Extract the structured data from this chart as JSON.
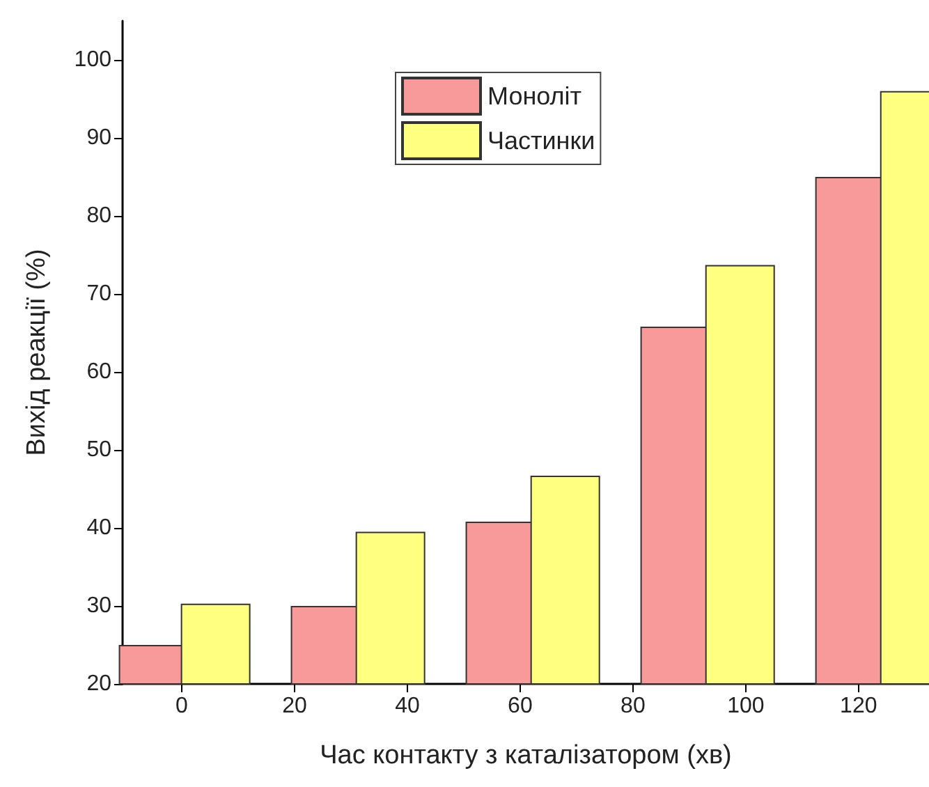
{
  "chart_data": {
    "type": "bar",
    "xlabel": "Час контакту з каталізатором (хв)",
    "ylabel": "Вихід реакції (%)",
    "xlim": [
      -10.5,
      132.5
    ],
    "xticks": [
      0,
      20,
      40,
      60,
      80,
      100,
      120
    ],
    "ylim": [
      20,
      105
    ],
    "yticks": [
      20,
      30,
      40,
      50,
      60,
      70,
      80,
      90,
      100
    ],
    "series": [
      {
        "name": "Моноліт",
        "color": "#f99a9a",
        "x": [
          -5,
          25.5,
          56.5,
          87.5,
          118.5
        ],
        "values": [
          25,
          30,
          40.8,
          65.8,
          85
        ]
      },
      {
        "name": "Частинки",
        "color": "#ffff80",
        "x": [
          6,
          37,
          68,
          99,
          130
        ],
        "values": [
          30.3,
          39.5,
          46.7,
          73.7,
          96
        ]
      }
    ],
    "grid": false,
    "legend": "top"
  }
}
